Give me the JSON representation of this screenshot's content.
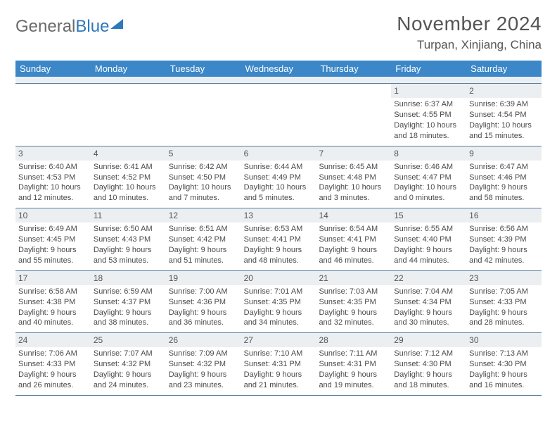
{
  "brand": {
    "part1": "General",
    "part2": "Blue"
  },
  "title": "November 2024",
  "location": "Turpan, Xinjiang, China",
  "colors": {
    "header_bg": "#3b87c8",
    "header_text": "#ffffff",
    "rule": "#5a7fa0",
    "daynum_bg": "#eceff1",
    "body_text": "#4a4a4a",
    "title_text": "#555555",
    "brand_gray": "#6a6a6a",
    "brand_blue": "#2f78bb",
    "page_bg": "#ffffff"
  },
  "typography": {
    "title_fontsize": 28,
    "subtitle_fontsize": 17,
    "weekday_fontsize": 13,
    "daynum_fontsize": 12,
    "body_fontsize": 11,
    "font_family": "Arial"
  },
  "weekdays": [
    "Sunday",
    "Monday",
    "Tuesday",
    "Wednesday",
    "Thursday",
    "Friday",
    "Saturday"
  ],
  "weeks": [
    [
      null,
      null,
      null,
      null,
      null,
      {
        "n": "1",
        "sunrise": "Sunrise: 6:37 AM",
        "sunset": "Sunset: 4:55 PM",
        "daylight": "Daylight: 10 hours and 18 minutes."
      },
      {
        "n": "2",
        "sunrise": "Sunrise: 6:39 AM",
        "sunset": "Sunset: 4:54 PM",
        "daylight": "Daylight: 10 hours and 15 minutes."
      }
    ],
    [
      {
        "n": "3",
        "sunrise": "Sunrise: 6:40 AM",
        "sunset": "Sunset: 4:53 PM",
        "daylight": "Daylight: 10 hours and 12 minutes."
      },
      {
        "n": "4",
        "sunrise": "Sunrise: 6:41 AM",
        "sunset": "Sunset: 4:52 PM",
        "daylight": "Daylight: 10 hours and 10 minutes."
      },
      {
        "n": "5",
        "sunrise": "Sunrise: 6:42 AM",
        "sunset": "Sunset: 4:50 PM",
        "daylight": "Daylight: 10 hours and 7 minutes."
      },
      {
        "n": "6",
        "sunrise": "Sunrise: 6:44 AM",
        "sunset": "Sunset: 4:49 PM",
        "daylight": "Daylight: 10 hours and 5 minutes."
      },
      {
        "n": "7",
        "sunrise": "Sunrise: 6:45 AM",
        "sunset": "Sunset: 4:48 PM",
        "daylight": "Daylight: 10 hours and 3 minutes."
      },
      {
        "n": "8",
        "sunrise": "Sunrise: 6:46 AM",
        "sunset": "Sunset: 4:47 PM",
        "daylight": "Daylight: 10 hours and 0 minutes."
      },
      {
        "n": "9",
        "sunrise": "Sunrise: 6:47 AM",
        "sunset": "Sunset: 4:46 PM",
        "daylight": "Daylight: 9 hours and 58 minutes."
      }
    ],
    [
      {
        "n": "10",
        "sunrise": "Sunrise: 6:49 AM",
        "sunset": "Sunset: 4:45 PM",
        "daylight": "Daylight: 9 hours and 55 minutes."
      },
      {
        "n": "11",
        "sunrise": "Sunrise: 6:50 AM",
        "sunset": "Sunset: 4:43 PM",
        "daylight": "Daylight: 9 hours and 53 minutes."
      },
      {
        "n": "12",
        "sunrise": "Sunrise: 6:51 AM",
        "sunset": "Sunset: 4:42 PM",
        "daylight": "Daylight: 9 hours and 51 minutes."
      },
      {
        "n": "13",
        "sunrise": "Sunrise: 6:53 AM",
        "sunset": "Sunset: 4:41 PM",
        "daylight": "Daylight: 9 hours and 48 minutes."
      },
      {
        "n": "14",
        "sunrise": "Sunrise: 6:54 AM",
        "sunset": "Sunset: 4:41 PM",
        "daylight": "Daylight: 9 hours and 46 minutes."
      },
      {
        "n": "15",
        "sunrise": "Sunrise: 6:55 AM",
        "sunset": "Sunset: 4:40 PM",
        "daylight": "Daylight: 9 hours and 44 minutes."
      },
      {
        "n": "16",
        "sunrise": "Sunrise: 6:56 AM",
        "sunset": "Sunset: 4:39 PM",
        "daylight": "Daylight: 9 hours and 42 minutes."
      }
    ],
    [
      {
        "n": "17",
        "sunrise": "Sunrise: 6:58 AM",
        "sunset": "Sunset: 4:38 PM",
        "daylight": "Daylight: 9 hours and 40 minutes."
      },
      {
        "n": "18",
        "sunrise": "Sunrise: 6:59 AM",
        "sunset": "Sunset: 4:37 PM",
        "daylight": "Daylight: 9 hours and 38 minutes."
      },
      {
        "n": "19",
        "sunrise": "Sunrise: 7:00 AM",
        "sunset": "Sunset: 4:36 PM",
        "daylight": "Daylight: 9 hours and 36 minutes."
      },
      {
        "n": "20",
        "sunrise": "Sunrise: 7:01 AM",
        "sunset": "Sunset: 4:35 PM",
        "daylight": "Daylight: 9 hours and 34 minutes."
      },
      {
        "n": "21",
        "sunrise": "Sunrise: 7:03 AM",
        "sunset": "Sunset: 4:35 PM",
        "daylight": "Daylight: 9 hours and 32 minutes."
      },
      {
        "n": "22",
        "sunrise": "Sunrise: 7:04 AM",
        "sunset": "Sunset: 4:34 PM",
        "daylight": "Daylight: 9 hours and 30 minutes."
      },
      {
        "n": "23",
        "sunrise": "Sunrise: 7:05 AM",
        "sunset": "Sunset: 4:33 PM",
        "daylight": "Daylight: 9 hours and 28 minutes."
      }
    ],
    [
      {
        "n": "24",
        "sunrise": "Sunrise: 7:06 AM",
        "sunset": "Sunset: 4:33 PM",
        "daylight": "Daylight: 9 hours and 26 minutes."
      },
      {
        "n": "25",
        "sunrise": "Sunrise: 7:07 AM",
        "sunset": "Sunset: 4:32 PM",
        "daylight": "Daylight: 9 hours and 24 minutes."
      },
      {
        "n": "26",
        "sunrise": "Sunrise: 7:09 AM",
        "sunset": "Sunset: 4:32 PM",
        "daylight": "Daylight: 9 hours and 23 minutes."
      },
      {
        "n": "27",
        "sunrise": "Sunrise: 7:10 AM",
        "sunset": "Sunset: 4:31 PM",
        "daylight": "Daylight: 9 hours and 21 minutes."
      },
      {
        "n": "28",
        "sunrise": "Sunrise: 7:11 AM",
        "sunset": "Sunset: 4:31 PM",
        "daylight": "Daylight: 9 hours and 19 minutes."
      },
      {
        "n": "29",
        "sunrise": "Sunrise: 7:12 AM",
        "sunset": "Sunset: 4:30 PM",
        "daylight": "Daylight: 9 hours and 18 minutes."
      },
      {
        "n": "30",
        "sunrise": "Sunrise: 7:13 AM",
        "sunset": "Sunset: 4:30 PM",
        "daylight": "Daylight: 9 hours and 16 minutes."
      }
    ]
  ]
}
